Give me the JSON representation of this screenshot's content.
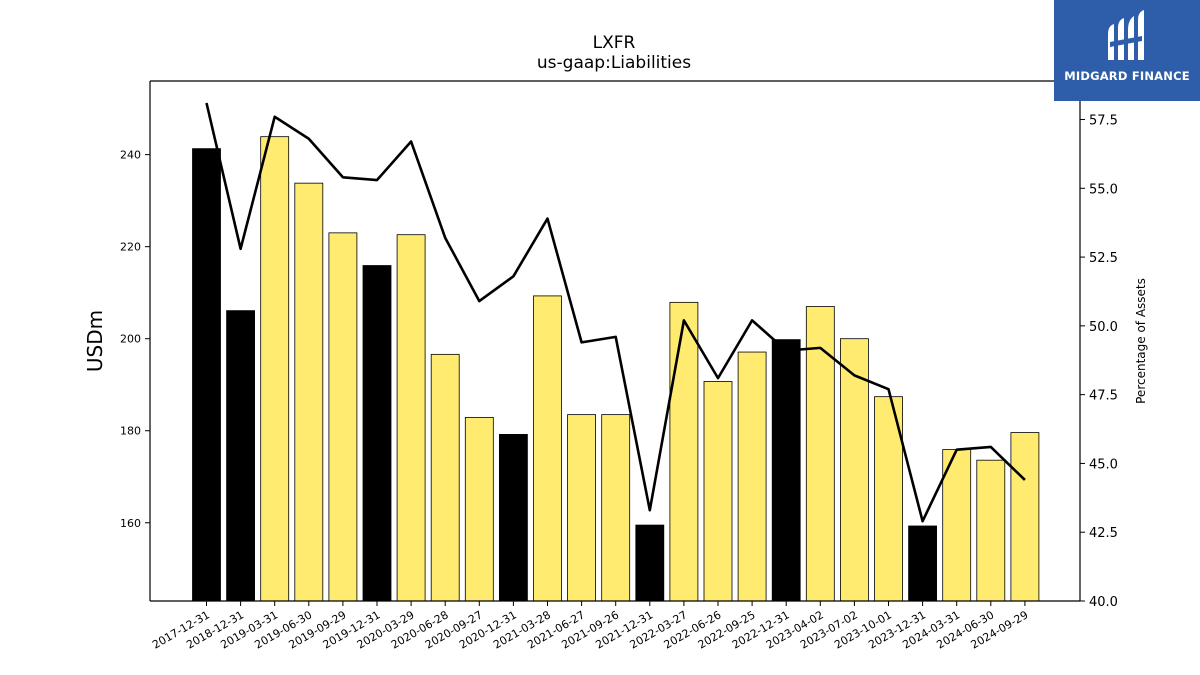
{
  "chart_data": {
    "type": "bar",
    "title": "LXFR",
    "subtitle": "us-gaap:Liabilities",
    "ylabel": "USDm",
    "y2label": "Percentage of Assets",
    "ylim": [
      143,
      256
    ],
    "y2lim": [
      40.0,
      58.9
    ],
    "yticks": [
      160,
      180,
      200,
      220,
      240
    ],
    "y2ticks": [
      40.0,
      42.5,
      45.0,
      47.5,
      50.0,
      52.5,
      55.0,
      57.5
    ],
    "categories": [
      "2017-12-31",
      "2018-12-31",
      "2019-03-31",
      "2019-06-30",
      "2019-09-29",
      "2019-12-31",
      "2020-03-29",
      "2020-06-28",
      "2020-09-27",
      "2020-12-31",
      "2021-03-28",
      "2021-06-27",
      "2021-09-26",
      "2021-12-31",
      "2022-03-27",
      "2022-06-26",
      "2022-09-25",
      "2022-12-31",
      "2023-04-02",
      "2023-07-02",
      "2023-10-01",
      "2023-12-31",
      "2024-03-31",
      "2024-06-30",
      "2024-09-29"
    ],
    "series": [
      {
        "type": "bar",
        "values": [
          241.3,
          206.1,
          243.9,
          233.8,
          223.0,
          215.9,
          222.6,
          196.6,
          182.9,
          179.2,
          209.3,
          183.5,
          183.5,
          159.5,
          207.9,
          190.7,
          197.1,
          199.8,
          207.0,
          200.0,
          187.4,
          159.3,
          175.9,
          173.6,
          179.6
        ],
        "colors": [
          "#000000",
          "#000000",
          "#ffeb70",
          "#ffeb70",
          "#ffeb70",
          "#000000",
          "#ffeb70",
          "#ffeb70",
          "#ffeb70",
          "#000000",
          "#ffeb70",
          "#ffeb70",
          "#ffeb70",
          "#000000",
          "#ffeb70",
          "#ffeb70",
          "#ffeb70",
          "#000000",
          "#ffeb70",
          "#ffeb70",
          "#ffeb70",
          "#000000",
          "#ffeb70",
          "#ffeb70",
          "#ffeb70"
        ]
      },
      {
        "type": "line",
        "axis": "right",
        "values": [
          58.1,
          52.8,
          57.6,
          56.8,
          55.4,
          55.3,
          56.7,
          53.2,
          50.9,
          51.8,
          53.9,
          49.4,
          49.6,
          43.3,
          50.2,
          48.1,
          50.2,
          49.1,
          49.2,
          48.2,
          47.7,
          42.9,
          45.5,
          45.6,
          44.4
        ],
        "color": "#000000"
      }
    ],
    "grid": false,
    "colors": {
      "annual": "#000000",
      "quarterly": "#ffeb70",
      "line": "#000000"
    }
  },
  "logo": {
    "text": "MIDGARD FINANCE",
    "icon": "midgard-logo-icon"
  }
}
